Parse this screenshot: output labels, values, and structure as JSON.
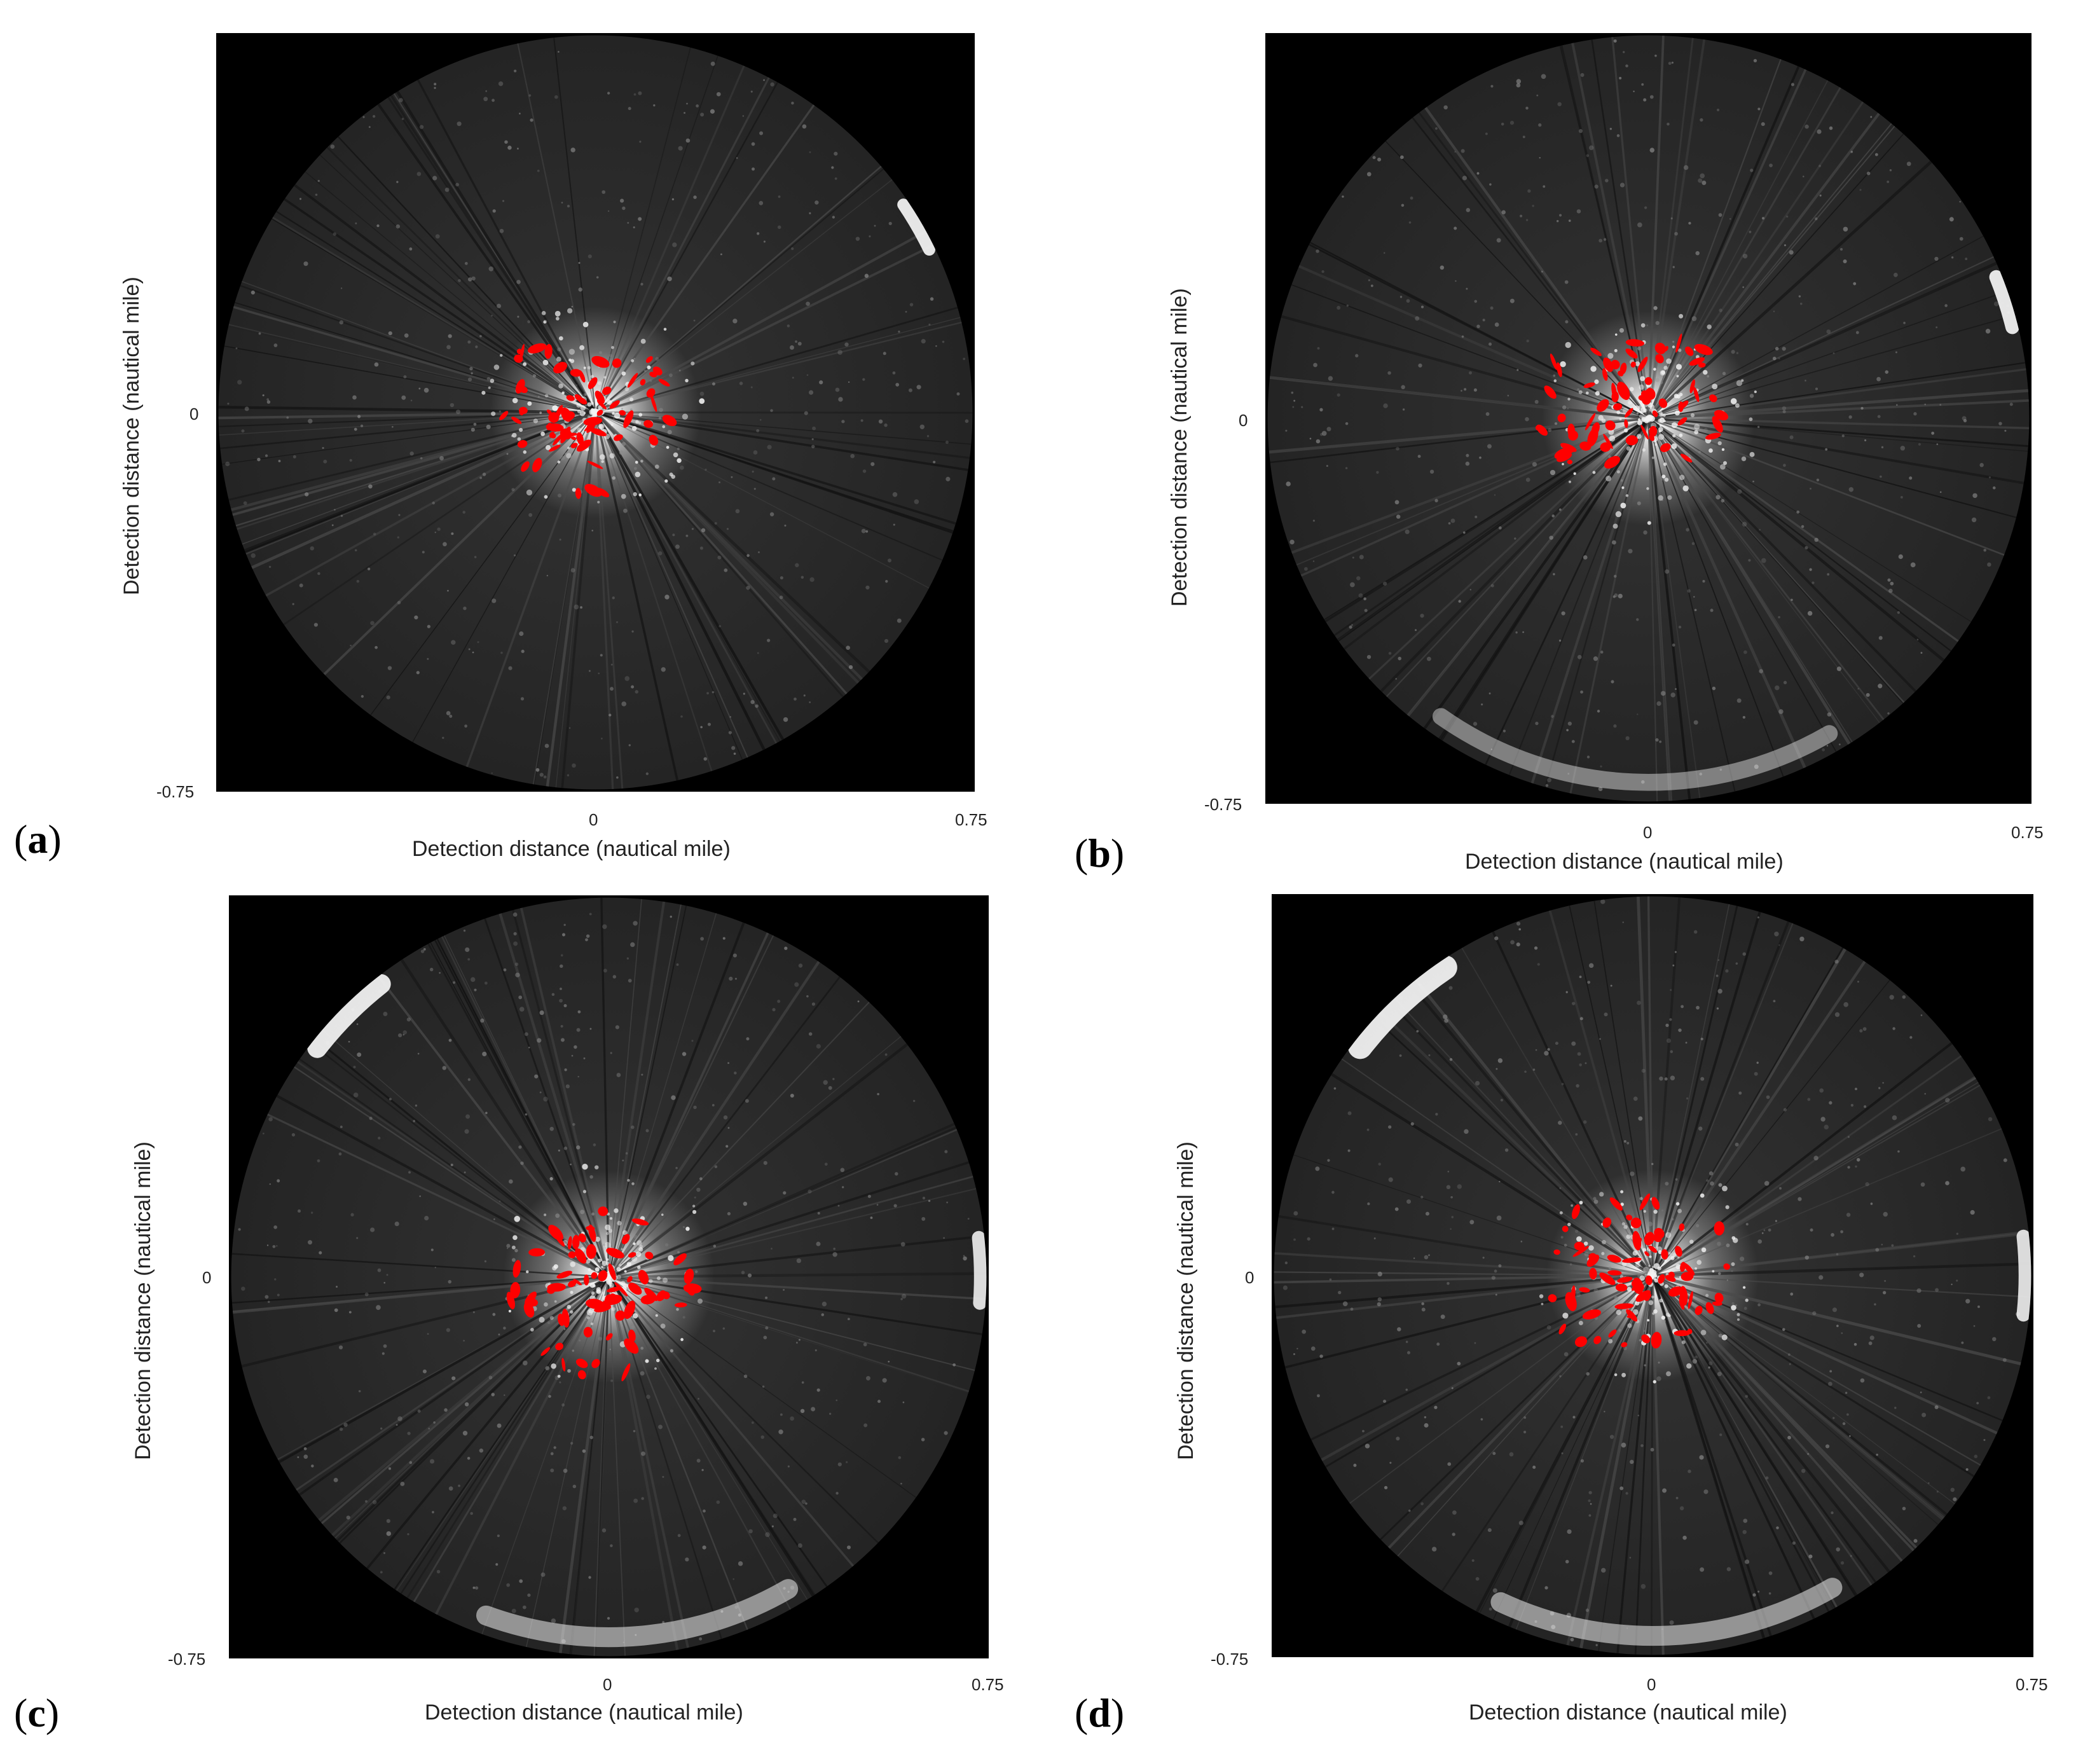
{
  "panels": [
    {
      "id": "a",
      "letter": "a",
      "ylabel": "Detection distance (nautical mile)",
      "xlabel": "Detection distance (nautical mile)",
      "y_ticks": [
        "0",
        "-0.75"
      ],
      "x_ticks": [
        "0",
        "0.75"
      ]
    },
    {
      "id": "b",
      "letter": "b",
      "ylabel": "Detection distance (nautical mile)",
      "xlabel": "Detection distance (nautical mile)",
      "y_ticks": [
        "0",
        "-0.75"
      ],
      "x_ticks": [
        "0",
        "0.75"
      ]
    },
    {
      "id": "c",
      "letter": "c",
      "ylabel": "Detection distance (nautical mile)",
      "xlabel": "Detection distance (nautical mile)",
      "y_ticks": [
        "0",
        "-0.75"
      ],
      "x_ticks": [
        "0",
        "0.75"
      ]
    },
    {
      "id": "d",
      "letter": "d",
      "ylabel": "Detection distance (nautical mile)",
      "xlabel": "Detection distance (nautical mile)",
      "y_ticks": [
        "0",
        "-0.75"
      ],
      "x_ticks": [
        "0",
        "0.75"
      ]
    }
  ],
  "colors": {
    "background": "#000000",
    "radar": "#d9d9d9",
    "detection": "#ff0000"
  }
}
